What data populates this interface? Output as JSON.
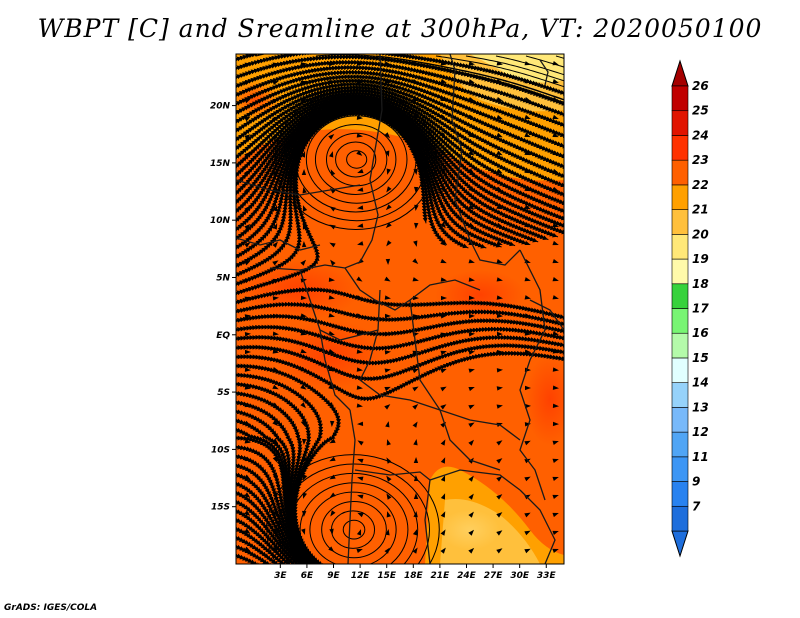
{
  "title": "WBPT [C] and Sreamline at 300hPa, VT: 2020050100",
  "credit": "GrADS: IGES/COLA",
  "map": {
    "lon_range": [
      -2,
      35
    ],
    "lat_range": [
      -20,
      24.5
    ],
    "lat_ticks": [
      {
        "value": 20,
        "label": "20N"
      },
      {
        "value": 15,
        "label": "15N"
      },
      {
        "value": 10,
        "label": "10N"
      },
      {
        "value": 5,
        "label": "5N"
      },
      {
        "value": 0,
        "label": "EQ"
      },
      {
        "value": -5,
        "label": "5S"
      },
      {
        "value": -10,
        "label": "10S"
      },
      {
        "value": -15,
        "label": "15S"
      }
    ],
    "lon_ticks": [
      {
        "value": 3,
        "label": "3E"
      },
      {
        "value": 6,
        "label": "6E"
      },
      {
        "value": 9,
        "label": "9E"
      },
      {
        "value": 12,
        "label": "12E"
      },
      {
        "value": 15,
        "label": "15E"
      },
      {
        "value": 18,
        "label": "18E"
      },
      {
        "value": 21,
        "label": "21E"
      },
      {
        "value": 24,
        "label": "24E"
      },
      {
        "value": 27,
        "label": "27E"
      },
      {
        "value": 30,
        "label": "30E"
      },
      {
        "value": 33,
        "label": "33E"
      }
    ],
    "vortices": [
      {
        "name": "northern-anticyclone",
        "lon": 11.5,
        "lat": 15.3
      },
      {
        "name": "southern-anticyclone",
        "lon": 11.2,
        "lat": -17.0
      }
    ]
  },
  "colorbar": {
    "levels": [
      {
        "label": "7",
        "color": "#1e6edc"
      },
      {
        "label": "9",
        "color": "#2882f0"
      },
      {
        "label": "11",
        "color": "#3c96f5"
      },
      {
        "label": "12",
        "color": "#50a5f5"
      },
      {
        "label": "13",
        "color": "#78b9fa"
      },
      {
        "label": "14",
        "color": "#96d2fa"
      },
      {
        "label": "15",
        "color": "#e1ffff"
      },
      {
        "label": "16",
        "color": "#b4faaa"
      },
      {
        "label": "17",
        "color": "#78f573"
      },
      {
        "label": "18",
        "color": "#37d23c"
      },
      {
        "label": "19",
        "color": "#fffaaa"
      },
      {
        "label": "20",
        "color": "#ffe878"
      },
      {
        "label": "21",
        "color": "#ffc03c"
      },
      {
        "label": "22",
        "color": "#ffa000"
      },
      {
        "label": "23",
        "color": "#ff6000"
      },
      {
        "label": "24",
        "color": "#ff3200"
      },
      {
        "label": "25",
        "color": "#e11400"
      },
      {
        "label": "26",
        "color": "#c00000"
      }
    ],
    "under_color": "#1e6edc",
    "over_color": "#a50000"
  }
}
